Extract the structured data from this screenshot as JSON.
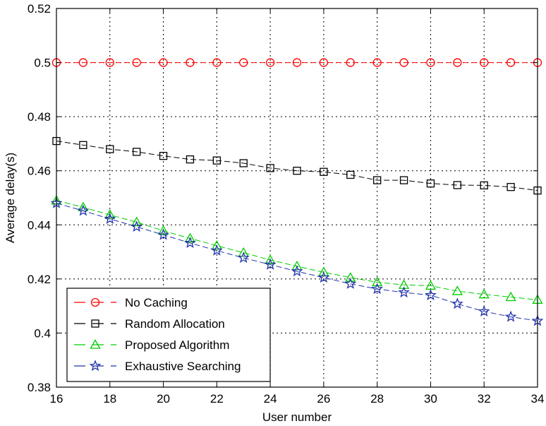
{
  "chart_data": {
    "type": "line",
    "xlabel": "User number",
    "ylabel": "Average delay(s)",
    "xlim": [
      16,
      34
    ],
    "ylim": [
      0.38,
      0.52
    ],
    "x_ticks": [
      "16",
      "18",
      "20",
      "22",
      "24",
      "26",
      "28",
      "30",
      "32",
      "34"
    ],
    "y_ticks": [
      "0.38",
      "0.4",
      "0.42",
      "0.44",
      "0.46",
      "0.48",
      "0.5",
      "0.52"
    ],
    "grid": true,
    "legend_position": "bottom-left",
    "x": [
      16,
      17,
      18,
      19,
      20,
      21,
      22,
      23,
      24,
      25,
      26,
      27,
      28,
      29,
      30,
      31,
      32,
      33,
      34
    ],
    "series": [
      {
        "name": "No Caching",
        "color": "#ff0000",
        "marker": "circle",
        "values": [
          0.5,
          0.5,
          0.5,
          0.5,
          0.5,
          0.5,
          0.5,
          0.5,
          0.5,
          0.5,
          0.5,
          0.5,
          0.5,
          0.5,
          0.5,
          0.5,
          0.5,
          0.5,
          0.5
        ]
      },
      {
        "name": "Random Allocation",
        "color": "#000000",
        "marker": "square",
        "values": [
          0.471,
          0.4695,
          0.468,
          0.467,
          0.4655,
          0.4642,
          0.4638,
          0.4628,
          0.461,
          0.46,
          0.4596,
          0.4585,
          0.4565,
          0.4565,
          0.4553,
          0.4547,
          0.4546,
          0.454,
          0.4527
        ]
      },
      {
        "name": "Proposed Algorithm",
        "color": "#00cc00",
        "marker": "triangle",
        "values": [
          0.449,
          0.4465,
          0.4437,
          0.441,
          0.4378,
          0.435,
          0.4323,
          0.4297,
          0.427,
          0.4247,
          0.4225,
          0.4205,
          0.4188,
          0.4178,
          0.4175,
          0.4155,
          0.4143,
          0.4133,
          0.4123
        ]
      },
      {
        "name": "Exhaustive Searching",
        "color": "#2233aa",
        "marker": "star",
        "values": [
          0.448,
          0.4452,
          0.4422,
          0.4393,
          0.4363,
          0.4333,
          0.4305,
          0.4278,
          0.4253,
          0.4228,
          0.4205,
          0.4182,
          0.4163,
          0.415,
          0.414,
          0.4108,
          0.408,
          0.406,
          0.4045
        ]
      }
    ]
  }
}
